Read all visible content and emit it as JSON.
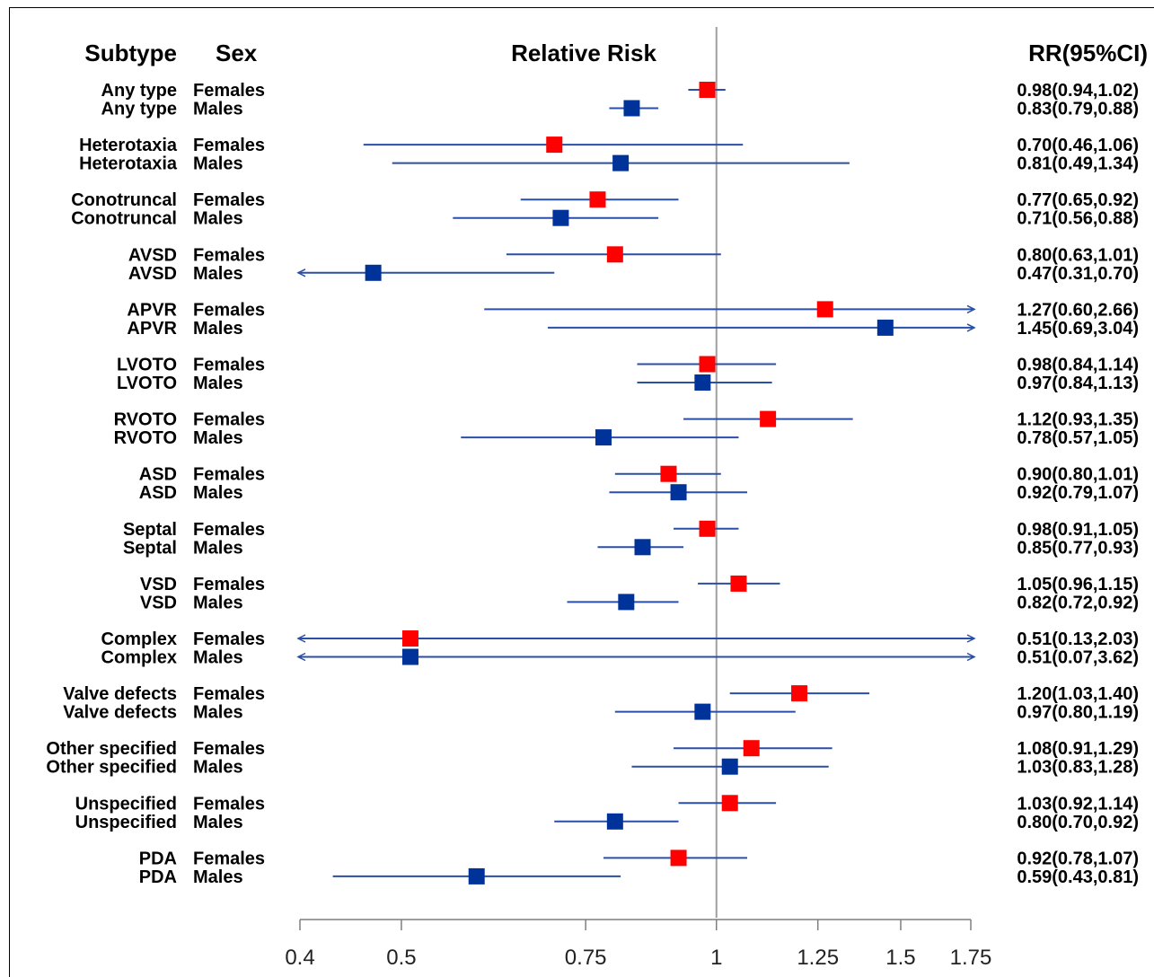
{
  "headers": {
    "subtype": "Subtype",
    "sex": "Sex",
    "relative_risk": "Relative Risk",
    "rr_ci": "RR(95%CI)"
  },
  "colors": {
    "females": "#ff0000",
    "males": "#003399",
    "ci_line": "#2a4fa8",
    "reference_line": "#a0a0a0",
    "axis": "#7f7f7f"
  },
  "chart_data": {
    "type": "forest",
    "title": "Relative Risk",
    "reference_value": 1,
    "xlim": [
      0.4,
      1.75
    ],
    "x_scale": "log",
    "x_ticks": [
      0.4,
      0.5,
      0.75,
      1,
      1.25,
      1.5,
      1.75
    ],
    "x_tick_labels": [
      "0.4",
      "0.5",
      "0.75",
      "1",
      "1.25",
      "1.5",
      "1.75"
    ],
    "series": [
      {
        "name": "Females",
        "color": "#ff0000"
      },
      {
        "name": "Males",
        "color": "#003399"
      }
    ],
    "rows": [
      {
        "subtype": "Any type",
        "sex": "Females",
        "rr": 0.98,
        "lo": 0.94,
        "hi": 1.02,
        "label": "0.98(0.94,1.02)"
      },
      {
        "subtype": "Any type",
        "sex": "Males",
        "rr": 0.83,
        "lo": 0.79,
        "hi": 0.88,
        "label": "0.83(0.79,0.88)"
      },
      {
        "subtype": "Heterotaxia",
        "sex": "Females",
        "rr": 0.7,
        "lo": 0.46,
        "hi": 1.06,
        "label": "0.70(0.46,1.06)"
      },
      {
        "subtype": "Heterotaxia",
        "sex": "Males",
        "rr": 0.81,
        "lo": 0.49,
        "hi": 1.34,
        "label": "0.81(0.49,1.34)"
      },
      {
        "subtype": "Conotruncal",
        "sex": "Females",
        "rr": 0.77,
        "lo": 0.65,
        "hi": 0.92,
        "label": "0.77(0.65,0.92)"
      },
      {
        "subtype": "Conotruncal",
        "sex": "Males",
        "rr": 0.71,
        "lo": 0.56,
        "hi": 0.88,
        "label": "0.71(0.56,0.88)"
      },
      {
        "subtype": "AVSD",
        "sex": "Females",
        "rr": 0.8,
        "lo": 0.63,
        "hi": 1.01,
        "label": "0.80(0.63,1.01)"
      },
      {
        "subtype": "AVSD",
        "sex": "Males",
        "rr": 0.47,
        "lo": 0.31,
        "hi": 0.7,
        "label": "0.47(0.31,0.70)"
      },
      {
        "subtype": "APVR",
        "sex": "Females",
        "rr": 1.27,
        "lo": 0.6,
        "hi": 2.66,
        "label": "1.27(0.60,2.66)"
      },
      {
        "subtype": "APVR",
        "sex": "Males",
        "rr": 1.45,
        "lo": 0.69,
        "hi": 3.04,
        "label": "1.45(0.69,3.04)"
      },
      {
        "subtype": "LVOTO",
        "sex": "Females",
        "rr": 0.98,
        "lo": 0.84,
        "hi": 1.14,
        "label": "0.98(0.84,1.14)"
      },
      {
        "subtype": "LVOTO",
        "sex": "Males",
        "rr": 0.97,
        "lo": 0.84,
        "hi": 1.13,
        "label": "0.97(0.84,1.13)"
      },
      {
        "subtype": "RVOTO",
        "sex": "Females",
        "rr": 1.12,
        "lo": 0.93,
        "hi": 1.35,
        "label": "1.12(0.93,1.35)"
      },
      {
        "subtype": "RVOTO",
        "sex": "Males",
        "rr": 0.78,
        "lo": 0.57,
        "hi": 1.05,
        "label": "0.78(0.57,1.05)"
      },
      {
        "subtype": "ASD",
        "sex": "Females",
        "rr": 0.9,
        "lo": 0.8,
        "hi": 1.01,
        "label": "0.90(0.80,1.01)"
      },
      {
        "subtype": "ASD",
        "sex": "Males",
        "rr": 0.92,
        "lo": 0.79,
        "hi": 1.07,
        "label": "0.92(0.79,1.07)"
      },
      {
        "subtype": "Septal",
        "sex": "Females",
        "rr": 0.98,
        "lo": 0.91,
        "hi": 1.05,
        "label": "0.98(0.91,1.05)"
      },
      {
        "subtype": "Septal",
        "sex": "Males",
        "rr": 0.85,
        "lo": 0.77,
        "hi": 0.93,
        "label": "0.85(0.77,0.93)"
      },
      {
        "subtype": "VSD",
        "sex": "Females",
        "rr": 1.05,
        "lo": 0.96,
        "hi": 1.15,
        "label": "1.05(0.96,1.15)"
      },
      {
        "subtype": "VSD",
        "sex": "Males",
        "rr": 0.82,
        "lo": 0.72,
        "hi": 0.92,
        "label": "0.82(0.72,0.92)"
      },
      {
        "subtype": "Complex",
        "sex": "Females",
        "rr": 0.51,
        "lo": 0.13,
        "hi": 2.03,
        "label": "0.51(0.13,2.03)"
      },
      {
        "subtype": "Complex",
        "sex": "Males",
        "rr": 0.51,
        "lo": 0.07,
        "hi": 3.62,
        "label": "0.51(0.07,3.62)"
      },
      {
        "subtype": "Valve defects",
        "sex": "Females",
        "rr": 1.2,
        "lo": 1.03,
        "hi": 1.4,
        "label": "1.20(1.03,1.40)"
      },
      {
        "subtype": "Valve defects",
        "sex": "Males",
        "rr": 0.97,
        "lo": 0.8,
        "hi": 1.19,
        "label": "0.97(0.80,1.19)"
      },
      {
        "subtype": "Other specified",
        "sex": "Females",
        "rr": 1.08,
        "lo": 0.91,
        "hi": 1.29,
        "label": "1.08(0.91,1.29)"
      },
      {
        "subtype": "Other specified",
        "sex": "Males",
        "rr": 1.03,
        "lo": 0.83,
        "hi": 1.28,
        "label": "1.03(0.83,1.28)"
      },
      {
        "subtype": "Unspecified",
        "sex": "Females",
        "rr": 1.03,
        "lo": 0.92,
        "hi": 1.14,
        "label": "1.03(0.92,1.14)"
      },
      {
        "subtype": "Unspecified",
        "sex": "Males",
        "rr": 0.8,
        "lo": 0.7,
        "hi": 0.92,
        "label": "0.80(0.70,0.92)"
      },
      {
        "subtype": "PDA",
        "sex": "Females",
        "rr": 0.92,
        "lo": 0.78,
        "hi": 1.07,
        "label": "0.92(0.78,1.07)"
      },
      {
        "subtype": "PDA",
        "sex": "Males",
        "rr": 0.59,
        "lo": 0.43,
        "hi": 0.81,
        "label": "0.59(0.43,0.81)"
      }
    ]
  }
}
